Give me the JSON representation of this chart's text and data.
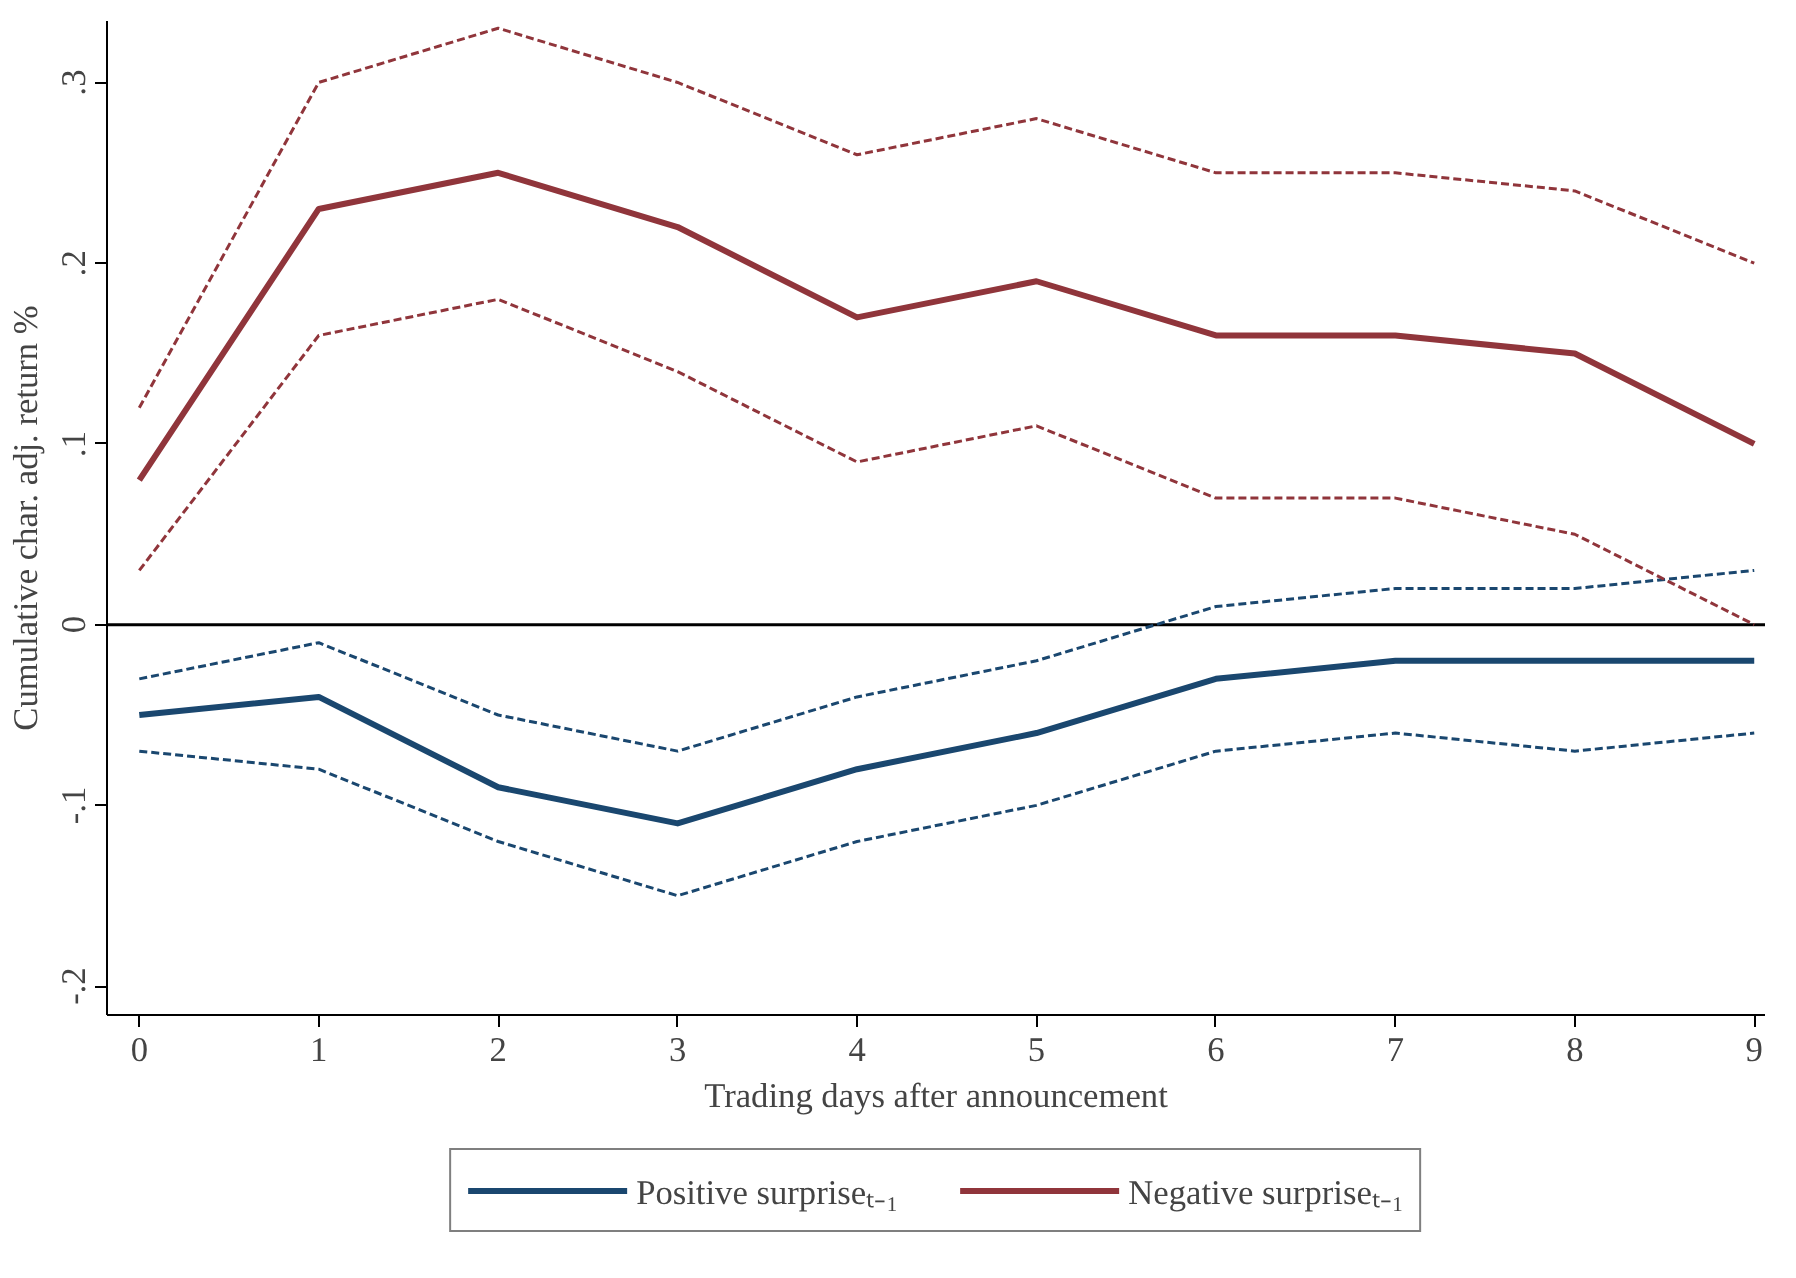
{
  "chart_data": {
    "type": "line",
    "xlabel": "Trading days after announcement",
    "ylabel": "Cumulative char. adj. return %",
    "x": [
      0,
      1,
      2,
      3,
      4,
      5,
      6,
      7,
      8,
      9
    ],
    "series": [
      {
        "name": "Positive surpriseₜ₋₁",
        "color": "#1a476f",
        "values": [
          -0.05,
          -0.04,
          -0.09,
          -0.11,
          -0.08,
          -0.06,
          -0.03,
          -0.02,
          -0.02,
          -0.02
        ]
      },
      {
        "color": "#1a476f",
        "line_style": "dashed",
        "values": [
          -0.03,
          -0.01,
          -0.05,
          -0.07,
          -0.04,
          -0.02,
          0.01,
          0.02,
          0.02,
          0.03
        ]
      },
      {
        "color": "#1a476f",
        "line_style": "dashed",
        "values": [
          -0.07,
          -0.08,
          -0.12,
          -0.15,
          -0.12,
          -0.1,
          -0.07,
          -0.06,
          -0.07,
          -0.06
        ]
      },
      {
        "name": "Negative surpriseₜ₋₁",
        "color": "#90353b",
        "values": [
          0.08,
          0.23,
          0.25,
          0.22,
          0.17,
          0.19,
          0.16,
          0.16,
          0.15,
          0.1
        ]
      },
      {
        "color": "#90353b",
        "line_style": "dashed",
        "values": [
          0.12,
          0.3,
          0.33,
          0.3,
          0.26,
          0.28,
          0.25,
          0.25,
          0.24,
          0.2
        ]
      },
      {
        "color": "#90353b",
        "line_style": "dashed",
        "values": [
          0.03,
          0.16,
          0.18,
          0.14,
          0.09,
          0.11,
          0.07,
          0.07,
          0.05,
          0.0
        ]
      }
    ],
    "xlim": [
      -0.18,
      9.06
    ],
    "ylim": [
      -0.216,
      0.334
    ],
    "xticks": [
      0,
      1,
      2,
      3,
      4,
      5,
      6,
      7,
      8,
      9
    ],
    "yticks": [
      {
        "value": -0.2,
        "label": "-.2"
      },
      {
        "value": -0.1,
        "label": "-.1"
      },
      0,
      {
        "value": 0.1,
        "label": ".1"
      },
      {
        "value": 0.2,
        "label": ".2"
      },
      {
        "value": 0.3,
        "label": ".3"
      }
    ],
    "ref_lines": [
      {
        "axis": "y",
        "value": 0,
        "color": "#000000"
      }
    ],
    "grid": false,
    "legend": "bottom",
    "line_style": "solid",
    "marker": "none"
  }
}
